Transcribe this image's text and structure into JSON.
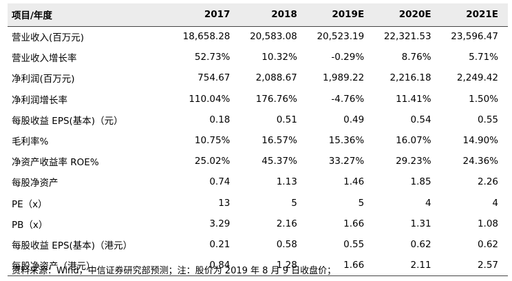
{
  "table": {
    "header": [
      "项目/年度",
      "2017",
      "2018",
      "2019E",
      "2020E",
      "2021E"
    ],
    "rows": [
      [
        "营业收入(百万元)",
        "18,658.28",
        "20,583.08",
        "20,523.19",
        "22,321.53",
        "23,596.47"
      ],
      [
        "营业收入增长率",
        "52.73%",
        "10.32%",
        "-0.29%",
        "8.76%",
        "5.71%"
      ],
      [
        "净利润(百万元)",
        "754.67",
        "2,088.67",
        "1,989.22",
        "2,216.18",
        "2,249.42"
      ],
      [
        "净利润增长率",
        "110.04%",
        "176.76%",
        "-4.76%",
        "11.41%",
        "1.50%"
      ],
      [
        "每股收益 EPS(基本)（元）",
        "0.18",
        "0.51",
        "0.49",
        "0.54",
        "0.55"
      ],
      [
        "毛利率%",
        "10.75%",
        "16.57%",
        "15.36%",
        "16.07%",
        "14.90%"
      ],
      [
        "净资产收益率 ROE%",
        "25.02%",
        "45.37%",
        "33.27%",
        "29.23%",
        "24.36%"
      ],
      [
        "每股净资产",
        "0.74",
        "1.13",
        "1.46",
        "1.85",
        "2.26"
      ],
      [
        "PE（x）",
        "13",
        "5",
        "5",
        "4",
        "4"
      ],
      [
        "PB（x）",
        "3.29",
        "2.16",
        "1.66",
        "1.31",
        "1.08"
      ],
      [
        "每股收益 EPS(基本)（港元）",
        "0.21",
        "0.58",
        "0.55",
        "0.62",
        "0.62"
      ],
      [
        "每股净资产（港元）",
        "0.84",
        "1.28",
        "1.66",
        "2.11",
        "2.57"
      ]
    ]
  },
  "footnote": "资料来源：Wind，中信证券研究部预测；注：股价为 2019 年 8 月 9 日收盘价；"
}
